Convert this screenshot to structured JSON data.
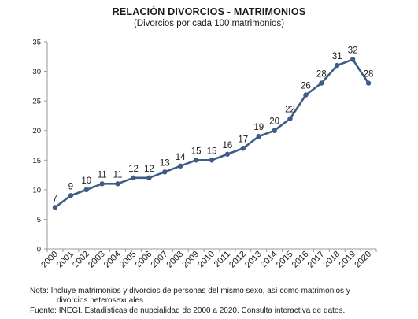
{
  "chart_data": {
    "type": "line",
    "title": "Relación divorcios - matrimonios",
    "subtitle": "(Divorcios por cada 100 matrimonios)",
    "x": [
      "2000",
      "2001",
      "2002",
      "2003",
      "2004",
      "2005",
      "2006",
      "2007",
      "2008",
      "2009",
      "2010",
      "2011",
      "2012",
      "2013",
      "2014",
      "2015",
      "2016",
      "2017",
      "2018",
      "2019",
      "2020"
    ],
    "series": [
      {
        "values": [
          7,
          9,
          10,
          11,
          11,
          12,
          12,
          13,
          14,
          15,
          15,
          16,
          17,
          19,
          20,
          22,
          26,
          28,
          31,
          32,
          28
        ]
      }
    ],
    "ylim": [
      0,
      35
    ],
    "yticks": [
      0,
      5,
      10,
      15,
      20,
      25,
      30,
      35
    ],
    "grid": false,
    "line_color": "#3f5d84"
  },
  "notes": {
    "note_line1": "Nota: Incluye matrimonios y divorcios de personas del mismo sexo, así como matrimonios y",
    "note_line2": "divorcios heterosexuales.",
    "source": "Fuente: INEGI. Estadísticas de nupcialidad de 2000 a 2020. Consulta interactiva de datos."
  }
}
